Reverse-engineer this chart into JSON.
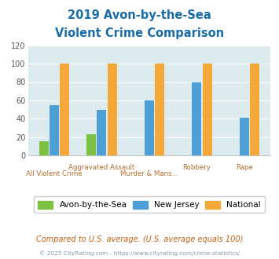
{
  "title_line1": "2019 Avon-by-the-Sea",
  "title_line2": "Violent Crime Comparison",
  "avon_values": [
    15,
    23,
    0,
    0,
    0
  ],
  "nj_values": [
    55,
    50,
    60,
    80,
    41
  ],
  "national_values": [
    100,
    100,
    100,
    100,
    100
  ],
  "avon_color": "#7dc142",
  "nj_color": "#4d9fd6",
  "national_color": "#f5a83a",
  "bg_color": "#ddeaee",
  "title_color": "#1a6ca8",
  "xlabel_color_top": "#b07030",
  "xlabel_color_bot": "#b07030",
  "legend_label_avon": "Avon-by-the-Sea",
  "legend_label_nj": "New Jersey",
  "legend_label_national": "National",
  "footnote1": "Compared to U.S. average. (U.S. average equals 100)",
  "footnote2": "© 2025 CityRating.com - https://www.cityrating.com/crime-statistics/",
  "ylim": [
    0,
    120
  ],
  "yticks": [
    0,
    20,
    40,
    60,
    80,
    100,
    120
  ],
  "top_labels": [
    "",
    "Aggravated Assault",
    "",
    "Robbery",
    "Rape"
  ],
  "bot_labels": [
    "All Violent Crime",
    "",
    "Murder & Mans...",
    "",
    ""
  ]
}
